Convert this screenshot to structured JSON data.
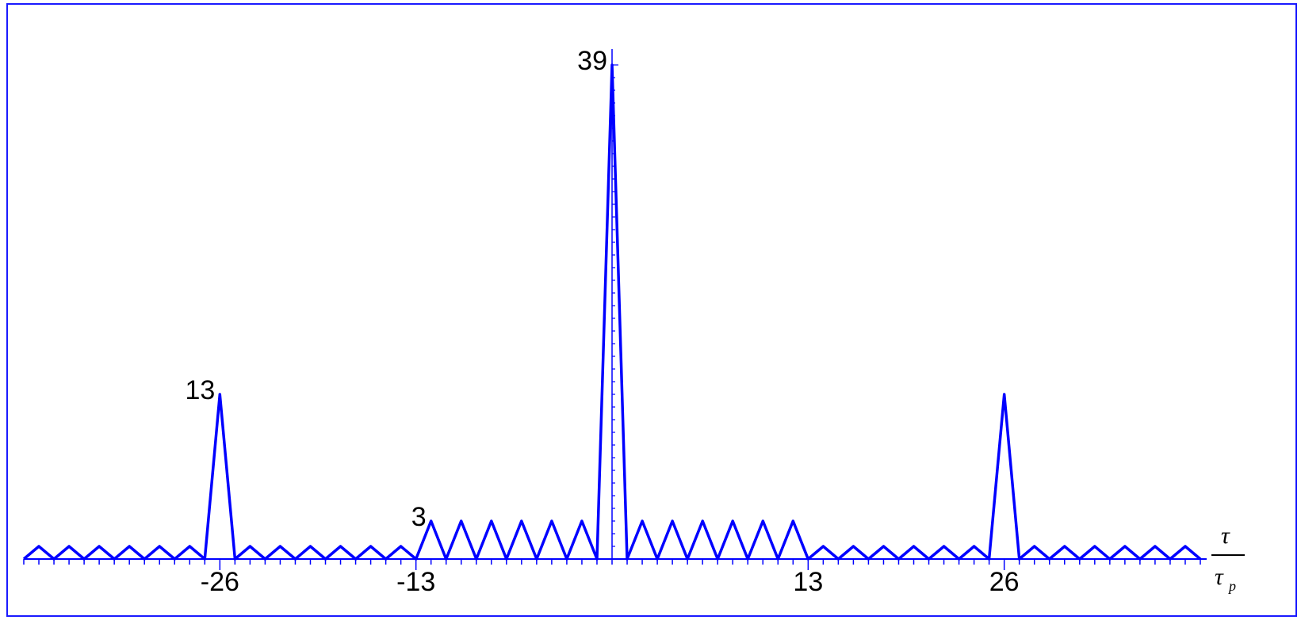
{
  "chart_data": {
    "type": "line",
    "title": "",
    "xlabel": {
      "numerator": "τ",
      "denominator": "τ",
      "denominator_subscript": "p"
    },
    "ylabel": "",
    "xlim": [
      -39,
      39
    ],
    "ylim": [
      0,
      39
    ],
    "x_ticks": [
      -26,
      -13,
      13,
      26
    ],
    "grid": false,
    "legend": "none",
    "line_color": "#0000ff",
    "axis_color": "#0000ff",
    "series": [
      {
        "points": [
          [
            -39,
            0
          ],
          [
            -38,
            1
          ],
          [
            -37,
            0
          ],
          [
            -36,
            1
          ],
          [
            -35,
            0
          ],
          [
            -34,
            1
          ],
          [
            -33,
            0
          ],
          [
            -32,
            1
          ],
          [
            -31,
            0
          ],
          [
            -30,
            1
          ],
          [
            -29,
            0
          ],
          [
            -28,
            1
          ],
          [
            -27,
            0
          ],
          [
            -26,
            13
          ],
          [
            -25,
            0
          ],
          [
            -24,
            1
          ],
          [
            -23,
            0
          ],
          [
            -22,
            1
          ],
          [
            -21,
            0
          ],
          [
            -20,
            1
          ],
          [
            -19,
            0
          ],
          [
            -18,
            1
          ],
          [
            -17,
            0
          ],
          [
            -16,
            1
          ],
          [
            -15,
            0
          ],
          [
            -14,
            1
          ],
          [
            -13,
            0
          ],
          [
            -12,
            3
          ],
          [
            -11,
            0
          ],
          [
            -10,
            3
          ],
          [
            -9,
            0
          ],
          [
            -8,
            3
          ],
          [
            -7,
            0
          ],
          [
            -6,
            3
          ],
          [
            -5,
            0
          ],
          [
            -4,
            3
          ],
          [
            -3,
            0
          ],
          [
            -2,
            3
          ],
          [
            -1,
            0
          ],
          [
            0,
            39
          ],
          [
            1,
            0
          ],
          [
            2,
            3
          ],
          [
            3,
            0
          ],
          [
            4,
            3
          ],
          [
            5,
            0
          ],
          [
            6,
            3
          ],
          [
            7,
            0
          ],
          [
            8,
            3
          ],
          [
            9,
            0
          ],
          [
            10,
            3
          ],
          [
            11,
            0
          ],
          [
            12,
            3
          ],
          [
            13,
            0
          ],
          [
            14,
            1
          ],
          [
            15,
            0
          ],
          [
            16,
            1
          ],
          [
            17,
            0
          ],
          [
            18,
            1
          ],
          [
            19,
            0
          ],
          [
            20,
            1
          ],
          [
            21,
            0
          ],
          [
            22,
            1
          ],
          [
            23,
            0
          ],
          [
            24,
            1
          ],
          [
            25,
            0
          ],
          [
            26,
            13
          ],
          [
            27,
            0
          ],
          [
            28,
            1
          ],
          [
            29,
            0
          ],
          [
            30,
            1
          ],
          [
            31,
            0
          ],
          [
            32,
            1
          ],
          [
            33,
            0
          ],
          [
            34,
            1
          ],
          [
            35,
            0
          ],
          [
            36,
            1
          ],
          [
            37,
            0
          ],
          [
            38,
            1
          ],
          [
            39,
            0
          ]
        ]
      }
    ],
    "annotations": [
      {
        "text": "39",
        "x": 0,
        "y": 39
      },
      {
        "text": "13",
        "x": -26,
        "y": 13
      },
      {
        "text": "3",
        "x": -12,
        "y": 3
      }
    ]
  }
}
